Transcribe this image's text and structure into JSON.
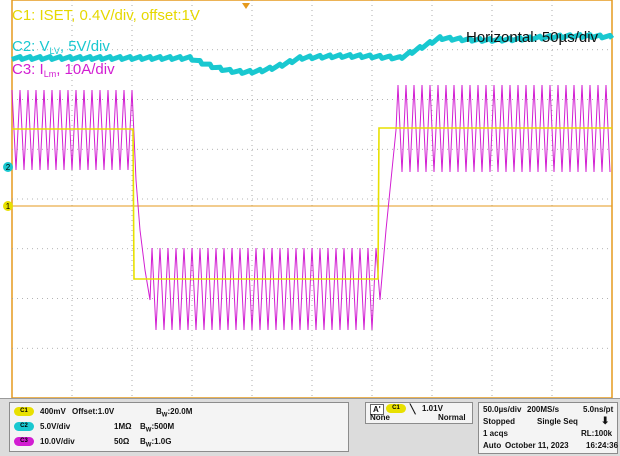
{
  "overlay": {
    "c1_label": "C1: ISET, 0.4V/div, offset:1V",
    "c2_label_pre": "C2: V",
    "c2_label_sub": "LV",
    "c2_label_post": ", 5V/div",
    "c3_label_pre": "C3: I",
    "c3_label_sub": "Lm",
    "c3_label_post": ", 10A/div",
    "horizontal_label": "Horizontal: 50µs/div"
  },
  "markers": {
    "ch2": "2",
    "ch1": "1"
  },
  "colors": {
    "ch1": "#e8e000",
    "ch2": "#19c8d0",
    "ch3": "#d21ed2",
    "grid": "#9a9a9a",
    "frame": "#e69a1e",
    "label_c1": "#e6d800",
    "label_c2": "#19c8d0",
    "label_c3": "#d21ed2"
  },
  "channels": [
    {
      "badge": "C1",
      "scale": "400mV",
      "offset": "Offset:1.0V",
      "coupling": "",
      "bw_prefix": "B",
      "bw_sub": "W",
      "bw_value": ":20.0M",
      "color": "#e8e000"
    },
    {
      "badge": "C2",
      "scale": "5.0V/div",
      "offset": "",
      "coupling": "1MΩ",
      "bw_prefix": "B",
      "bw_sub": "W",
      "bw_value": ":500M",
      "color": "#19c8d0"
    },
    {
      "badge": "C3",
      "scale": "10.0V/div",
      "offset": "",
      "coupling": "50Ω",
      "bw_prefix": "B",
      "bw_sub": "W",
      "bw_value": ":1.0G",
      "color": "#d21ed2"
    }
  ],
  "trigger": {
    "mode_badge": "A'",
    "source_badge": "C1",
    "level": "1.01V",
    "type": "None",
    "sweep": "Normal"
  },
  "acquisition": {
    "timebase": "50.0µs/div",
    "sample_rate": "200MS/s",
    "resolution": "5.0ns/pt",
    "state": "Stopped",
    "sequence": "Single Seq",
    "acqs": "1 acqs",
    "record_length": "RL:100k",
    "trigger_mode": "Auto",
    "date": "October 11, 2023",
    "time": "16:24:36"
  }
}
